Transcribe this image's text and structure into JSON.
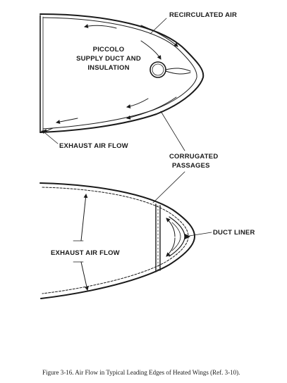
{
  "labels": {
    "recirculated_air": "RECIRCULATED AIR",
    "piccolo_line1": "PICCOLO",
    "piccolo_line2": "SUPPLY DUCT AND",
    "piccolo_line3": "INSULATION",
    "exhaust_air_flow_top": "EXHAUST AIR FLOW",
    "corrugated_line1": "CORRUGATED",
    "corrugated_line2": "PASSAGES",
    "duct_liner": "DUCT LINER",
    "exhaust_air_flow_bottom": "EXHAUST AIR FLOW"
  },
  "caption": "Figure 3-16.   Air Flow in Typical Leading Edges of Heated Wings (Ref. 3-10)."
}
